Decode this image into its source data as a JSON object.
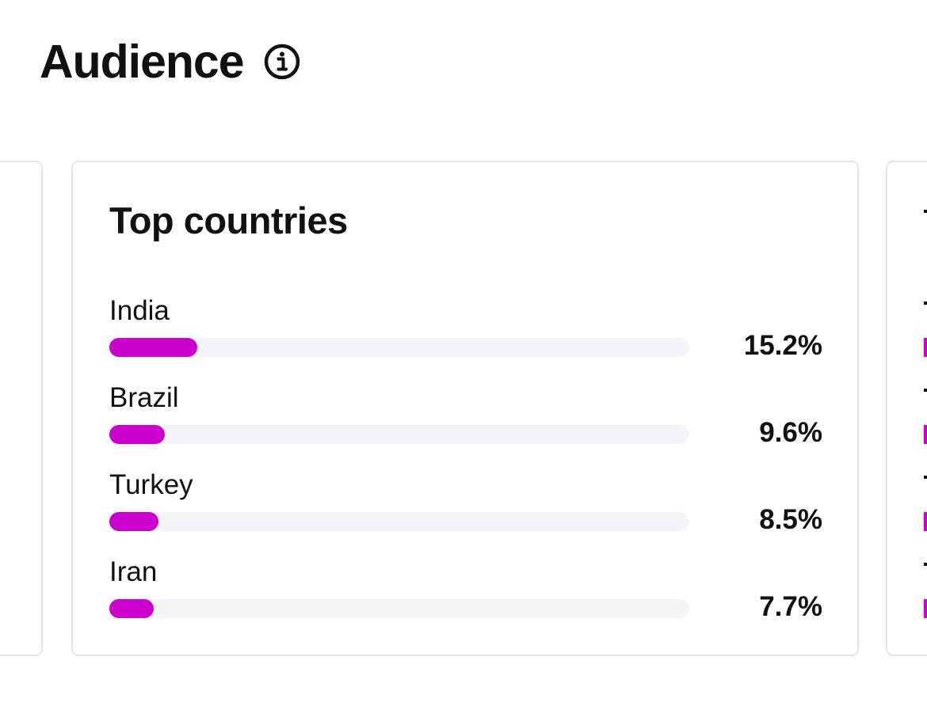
{
  "header": {
    "title": "Audience",
    "info_icon": "info-icon"
  },
  "top_countries": {
    "title": "Top countries",
    "items": [
      {
        "label": "India",
        "value": "15.2%",
        "percent": 15.2
      },
      {
        "label": "Brazil",
        "value": "9.6%",
        "percent": 9.6
      },
      {
        "label": "Turkey",
        "value": "8.5%",
        "percent": 8.5
      },
      {
        "label": "Iran",
        "value": "7.7%",
        "percent": 7.7
      }
    ]
  },
  "colors": {
    "accent": "#cc00cc",
    "track": "#f3f4f6",
    "border": "#e6e6e6",
    "text": "#111111"
  }
}
